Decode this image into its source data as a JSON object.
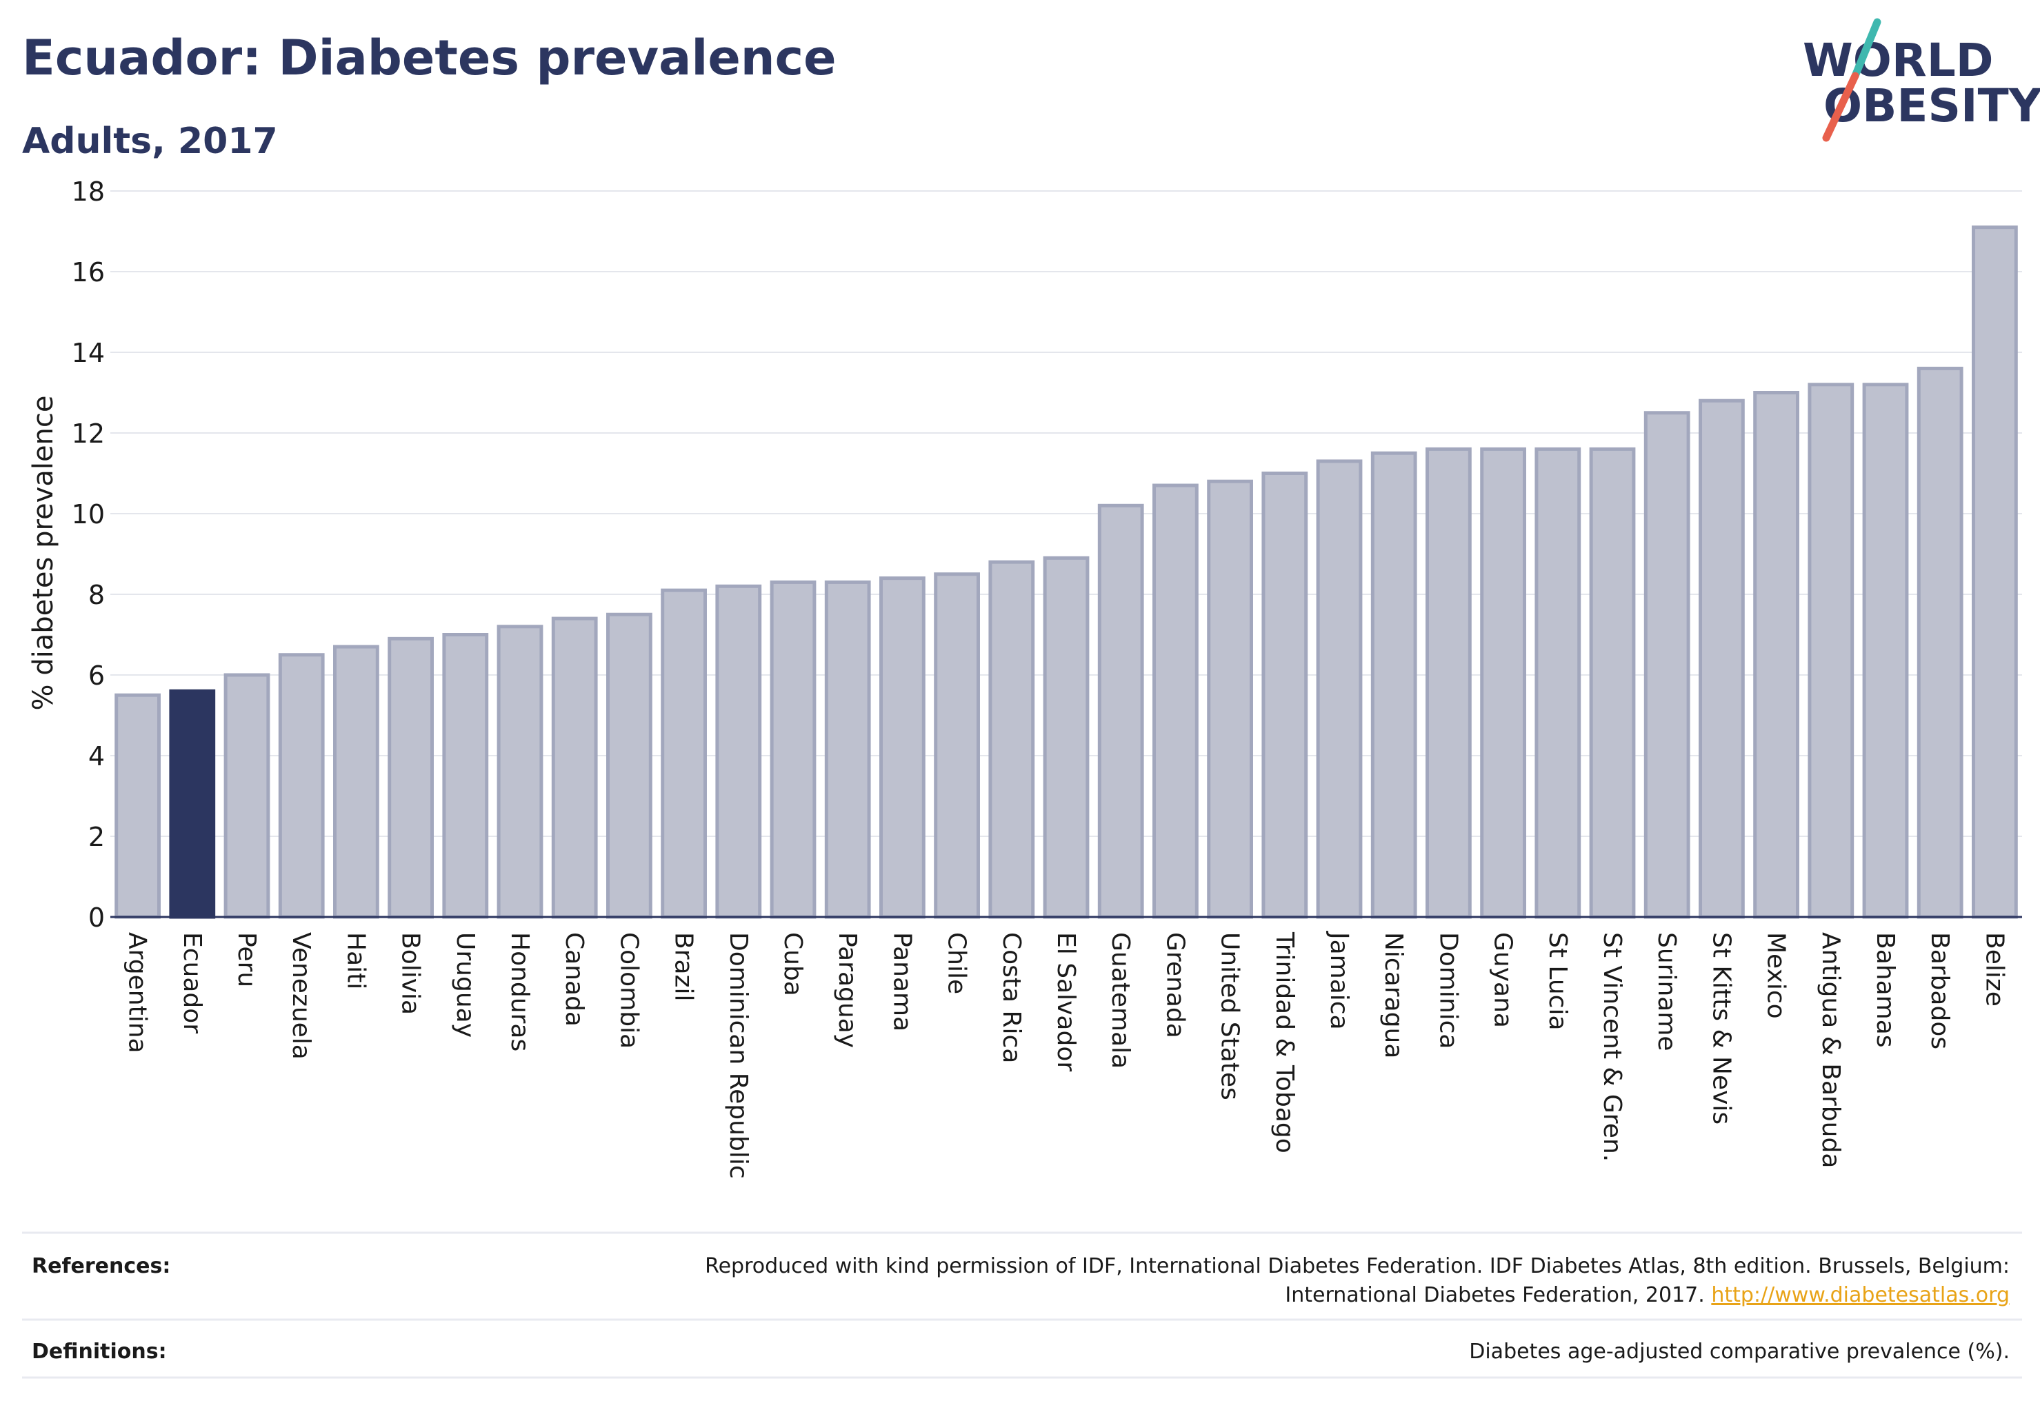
{
  "header": {
    "title": "Ecuador: Diabetes prevalence",
    "subtitle": "Adults, 2017"
  },
  "logo": {
    "line1": "WORLD",
    "line2": "OBESITY",
    "accent_colors": [
      "#3fb8af",
      "#e8604c"
    ]
  },
  "colors": {
    "title": "#2c3660",
    "highlight_bar": "#2c3660",
    "bar_fill": "#bec1cf",
    "bar_stroke": "#a2a7bd",
    "link": "#e8a317"
  },
  "chart_data": {
    "type": "bar",
    "ylabel": "% diabetes prevalence",
    "ylim": [
      0,
      18
    ],
    "yticks": [
      0,
      2,
      4,
      6,
      8,
      10,
      12,
      14,
      16,
      18
    ],
    "grid": true,
    "highlight": "Ecuador",
    "categories": [
      "Argentina",
      "Ecuador",
      "Peru",
      "Venezuela",
      "Haiti",
      "Bolivia",
      "Uruguay",
      "Honduras",
      "Canada",
      "Colombia",
      "Brazil",
      "Dominican Republic",
      "Cuba",
      "Paraguay",
      "Panama",
      "Chile",
      "Costa Rica",
      "El Salvador",
      "Guatemala",
      "Grenada",
      "United States",
      "Trinidad & Tobago",
      "Jamaica",
      "Nicaragua",
      "Dominica",
      "Guyana",
      "St Lucia",
      "St Vincent & Gren.",
      "Suriname",
      "St Kitts & Nevis",
      "Mexico",
      "Antigua & Barbuda",
      "Bahamas",
      "Barbados",
      "Belize"
    ],
    "values": [
      5.5,
      5.6,
      6.0,
      6.5,
      6.7,
      6.9,
      7.0,
      7.2,
      7.4,
      7.5,
      8.1,
      8.2,
      8.3,
      8.3,
      8.4,
      8.5,
      8.8,
      8.9,
      10.2,
      10.7,
      10.8,
      11.0,
      11.3,
      11.5,
      11.6,
      11.6,
      11.6,
      11.6,
      12.5,
      12.8,
      13.0,
      13.2,
      13.2,
      13.6,
      17.1
    ]
  },
  "references": {
    "label": "References:",
    "line1": "Reproduced with kind permission of IDF, International Diabetes Federation. IDF Diabetes Atlas, 8th edition. Brussels, Belgium:",
    "line2": "International Diabetes Federation, 2017.",
    "link": "http://www.diabetesatlas.org"
  },
  "definitions": {
    "label": "Definitions:",
    "text": "Diabetes age-adjusted comparative prevalence (%)."
  }
}
